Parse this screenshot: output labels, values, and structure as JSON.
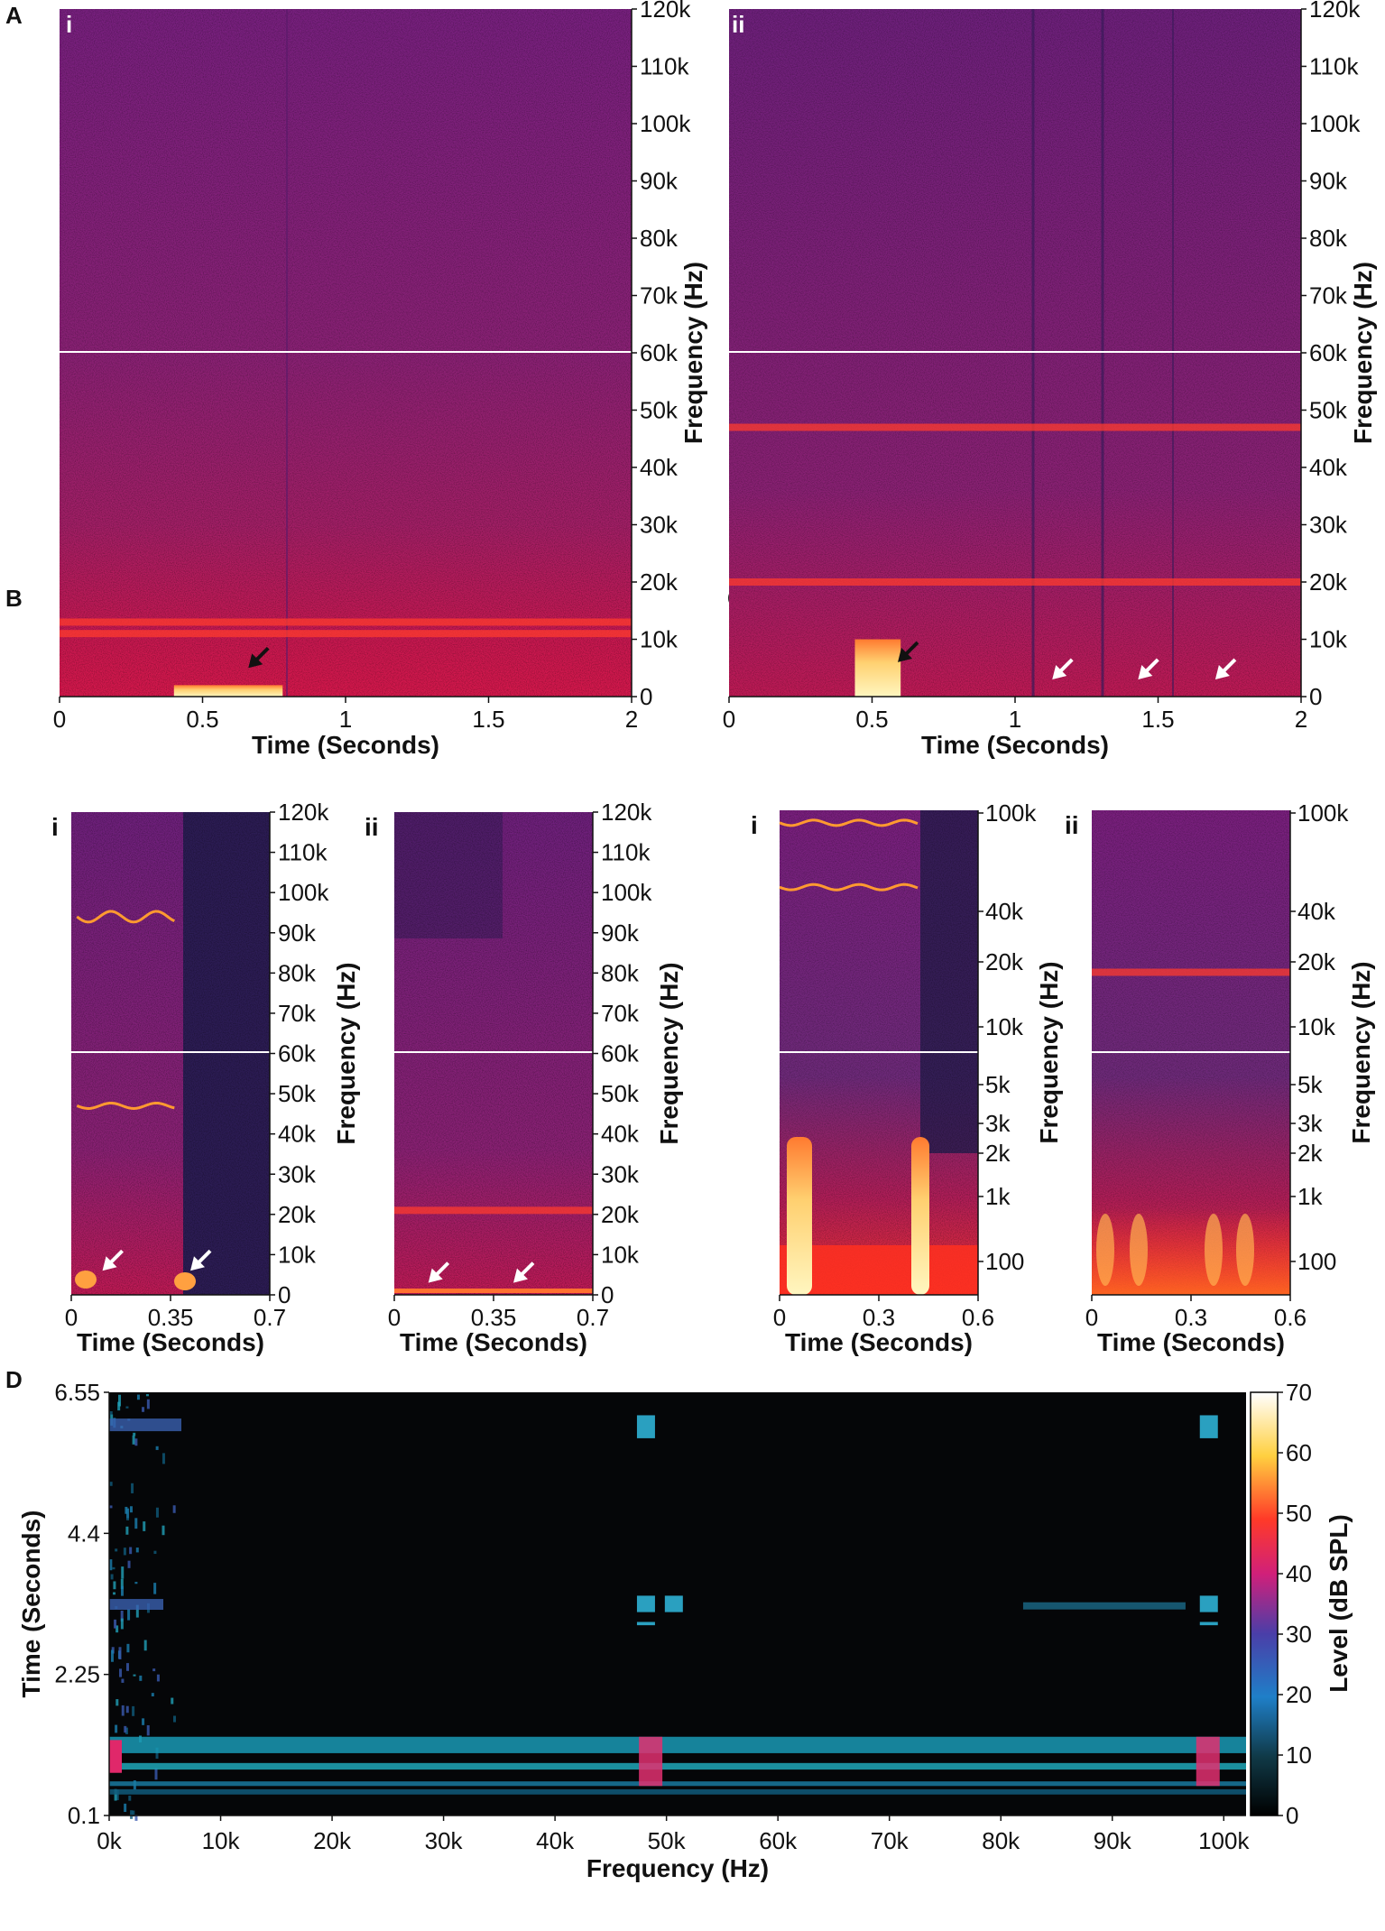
{
  "panel_labels": [
    "A",
    "B",
    "C",
    "D"
  ],
  "sub_labels": [
    "i",
    "ii"
  ],
  "colors": {
    "spec_bg": "#7a1f7e",
    "spec_low": "#c21c52",
    "band": "#ff3b2e",
    "burst": "#fff0a0",
    "line": "#ffffff"
  },
  "chart_data": [
    {
      "id": "A-i",
      "type": "heatmap",
      "title": "",
      "xlabel": "Time (Seconds)",
      "ylabel": "Frequency (Hz)",
      "x_ticks": [
        "0",
        "0.5",
        "1",
        "1.5",
        "2"
      ],
      "xlim": [
        0,
        2
      ],
      "y_ticks": [
        "0",
        "10k",
        "20k",
        "30k",
        "40k",
        "50k",
        "60k",
        "70k",
        "80k",
        "90k",
        "100k",
        "110k",
        "120k"
      ],
      "ylim": [
        0,
        120000
      ],
      "events": [
        {
          "start": 0.4,
          "end": 0.78,
          "f_max": 2000
        }
      ],
      "bands": [
        {
          "f": 13000
        },
        {
          "f": 11000
        }
      ],
      "arrows": [
        {
          "color": "black",
          "time": 0.66,
          "freq": 5000
        }
      ]
    },
    {
      "id": "A-ii",
      "type": "heatmap",
      "title": "",
      "xlabel": "Time (Seconds)",
      "ylabel": "Frequency (Hz)",
      "x_ticks": [
        "0",
        "0.5",
        "1",
        "1.5",
        "2"
      ],
      "xlim": [
        0,
        2
      ],
      "y_ticks": [
        "0",
        "10k",
        "20k",
        "30k",
        "40k",
        "50k",
        "60k",
        "70k",
        "80k",
        "90k",
        "100k",
        "110k",
        "120k"
      ],
      "ylim": [
        0,
        120000
      ],
      "events": [
        {
          "start": 0.44,
          "end": 0.6,
          "f_max": 10000
        }
      ],
      "bands": [
        {
          "f": 20000
        },
        {
          "f": 47000
        }
      ],
      "arrows": [
        {
          "color": "black",
          "time": 0.59,
          "freq": 6000
        },
        {
          "color": "white",
          "time": 1.13,
          "freq": 3000
        },
        {
          "color": "white",
          "time": 1.43,
          "freq": 3000
        },
        {
          "color": "white",
          "time": 1.7,
          "freq": 3000
        }
      ]
    },
    {
      "id": "B-i",
      "type": "heatmap",
      "title": "",
      "xlabel": "Time (Seconds)",
      "ylabel": "Frequency (Hz)",
      "x_ticks": [
        "0",
        "0.35",
        "0.7"
      ],
      "xlim": [
        0,
        0.7
      ],
      "y_ticks": [
        "0",
        "10k",
        "20k",
        "30k",
        "40k",
        "50k",
        "60k",
        "70k",
        "80k",
        "90k",
        "100k",
        "110k",
        "120k"
      ],
      "ylim": [
        0,
        120000
      ],
      "calls": [
        {
          "start": 0.02,
          "end": 0.37,
          "freq": 94000
        },
        {
          "start": 0.02,
          "end": 0.37,
          "freq": 47000
        }
      ],
      "arrows": [
        {
          "color": "white",
          "time": 0.11,
          "freq": 6000
        },
        {
          "color": "white",
          "time": 0.42,
          "freq": 6000
        }
      ]
    },
    {
      "id": "B-ii",
      "type": "heatmap",
      "title": "",
      "xlabel": "Time (Seconds)",
      "ylabel": "Frequency (Hz)",
      "x_ticks": [
        "0",
        "0.35",
        "0.7"
      ],
      "xlim": [
        0,
        0.7
      ],
      "y_ticks": [
        "0",
        "10k",
        "20k",
        "30k",
        "40k",
        "50k",
        "60k",
        "70k",
        "80k",
        "90k",
        "100k",
        "110k",
        "120k"
      ],
      "ylim": [
        0,
        120000
      ],
      "bands": [
        {
          "f": 21000
        }
      ],
      "arrows": [
        {
          "color": "white",
          "time": 0.12,
          "freq": 3000
        },
        {
          "color": "white",
          "time": 0.42,
          "freq": 3000
        }
      ]
    },
    {
      "id": "C-i",
      "type": "heatmap",
      "title": "",
      "xlabel": "Time (Seconds)",
      "ylabel": "Frequency (Hz)",
      "x_ticks": [
        "0",
        "0.3",
        "0.6"
      ],
      "xlim": [
        0,
        0.6
      ],
      "y_ticks": [
        "100",
        "1k",
        "2k",
        "3k",
        "5k",
        "10k",
        "20k",
        "40k",
        "100k"
      ],
      "yscale": "log",
      "calls": [
        {
          "start": 0.0,
          "end": 0.42,
          "freq": 90000
        },
        {
          "start": 0.0,
          "end": 0.42,
          "freq": 45000
        }
      ]
    },
    {
      "id": "C-ii",
      "type": "heatmap",
      "title": "",
      "xlabel": "Time (Seconds)",
      "ylabel": "Frequency (Hz)",
      "x_ticks": [
        "0",
        "0.3",
        "0.6"
      ],
      "xlim": [
        0,
        0.6
      ],
      "y_ticks": [
        "100",
        "1k",
        "2k",
        "3k",
        "5k",
        "10k",
        "20k",
        "40k",
        "100k"
      ],
      "yscale": "log",
      "bands": [
        {
          "f": 18000
        }
      ]
    },
    {
      "id": "D",
      "type": "heatmap",
      "title": "",
      "xlabel": "Frequency (Hz)",
      "ylabel": "Time (Seconds)",
      "x_ticks": [
        "0k",
        "10k",
        "20k",
        "30k",
        "40k",
        "50k",
        "60k",
        "70k",
        "80k",
        "90k",
        "100k"
      ],
      "xlim": [
        0,
        102000
      ],
      "y_ticks": [
        "0.1",
        "2.25",
        "4.4",
        "6.55"
      ],
      "ylim": [
        0.1,
        6.55
      ],
      "colorbar": {
        "label": "Level (dB SPL)",
        "ticks": [
          "0",
          "10",
          "20",
          "30",
          "40",
          "50",
          "60",
          "70"
        ],
        "range": [
          0,
          70
        ]
      }
    }
  ]
}
